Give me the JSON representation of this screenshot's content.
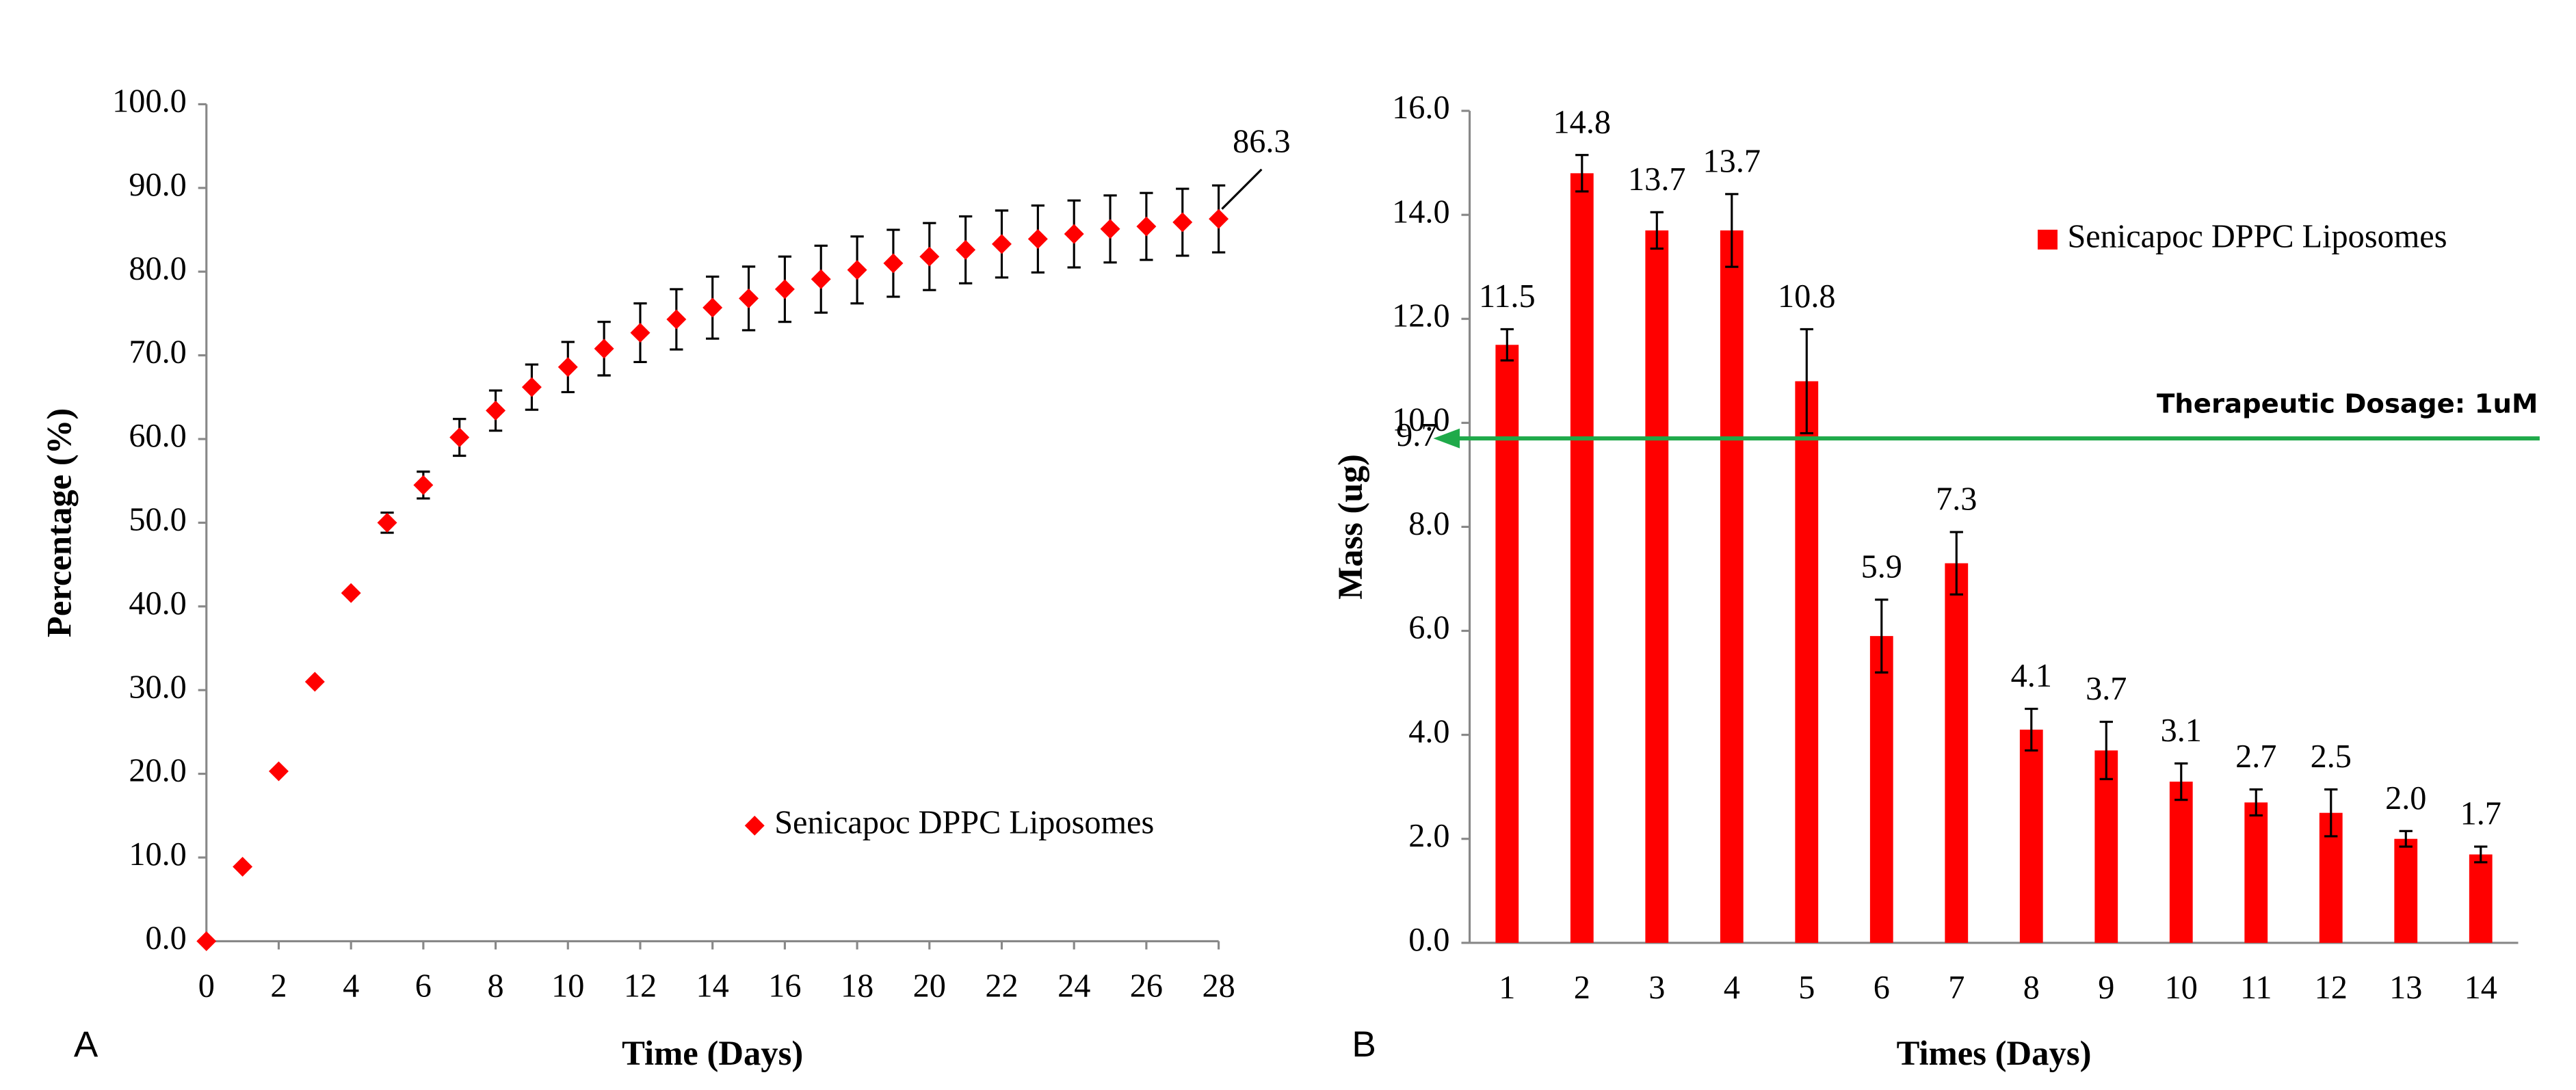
{
  "chart_data": [
    {
      "type": "scatter",
      "panel": "A",
      "x_label": "Time (Days)",
      "y_label": "Percentage (%)",
      "x": [
        0,
        1,
        2,
        3,
        4,
        5,
        6,
        7,
        8,
        9,
        10,
        11,
        12,
        13,
        14,
        15,
        16,
        17,
        18,
        19,
        20,
        21,
        22,
        23,
        24,
        25,
        26,
        27,
        28
      ],
      "series": [
        {
          "name": "Senicapoc DPPC Liposomes",
          "color": "#ff0000",
          "values": [
            0,
            8.9,
            20.3,
            31.0,
            41.6,
            50.0,
            54.5,
            60.2,
            63.4,
            66.2,
            68.6,
            70.8,
            72.7,
            74.3,
            75.7,
            76.8,
            77.9,
            79.1,
            80.2,
            81.0,
            81.8,
            82.6,
            83.3,
            83.9,
            84.5,
            85.1,
            85.4,
            85.9,
            86.3
          ],
          "errors": [
            0,
            0,
            0,
            0,
            0,
            1.2,
            1.6,
            2.2,
            2.4,
            2.7,
            3.0,
            3.2,
            3.5,
            3.6,
            3.7,
            3.8,
            3.9,
            4.0,
            4.0,
            4.0,
            4.0,
            4.0,
            4.0,
            4.0,
            4.0,
            4.0,
            4.0,
            4.0,
            4.0
          ],
          "value_labels": [
            null,
            null,
            null,
            null,
            null,
            null,
            null,
            null,
            null,
            null,
            null,
            null,
            null,
            null,
            null,
            null,
            null,
            null,
            null,
            null,
            null,
            null,
            null,
            null,
            null,
            null,
            null,
            null,
            "86.3"
          ]
        }
      ],
      "xlim": [
        0,
        28
      ],
      "xticks": [
        0,
        2,
        4,
        6,
        8,
        10,
        12,
        14,
        16,
        18,
        20,
        22,
        24,
        26,
        28
      ],
      "ylim": [
        0,
        100
      ],
      "yticks": [
        {
          "value": 0,
          "label": "0.0"
        },
        {
          "value": 10,
          "label": "10.0"
        },
        {
          "value": 20,
          "label": "20.0"
        },
        {
          "value": 30,
          "label": "30.0"
        },
        {
          "value": 40,
          "label": "40.0"
        },
        {
          "value": 50,
          "label": "50.0"
        },
        {
          "value": 60,
          "label": "60.0"
        },
        {
          "value": 70,
          "label": "70.0"
        },
        {
          "value": 80,
          "label": "80.0"
        },
        {
          "value": 90,
          "label": "90.0"
        },
        {
          "value": 100,
          "label": "100.0"
        }
      ],
      "legend": "lower right"
    },
    {
      "type": "bar",
      "panel": "B",
      "x_label": "Times (Days)",
      "y_label": "Mass (ug)",
      "categories": [
        "1",
        "2",
        "3",
        "4",
        "5",
        "6",
        "7",
        "8",
        "9",
        "10",
        "11",
        "12",
        "13",
        "14"
      ],
      "series": [
        {
          "name": "Senicapoc DPPC Liposomes",
          "color": "#ff0000",
          "values": [
            11.5,
            14.8,
            13.7,
            13.7,
            10.8,
            5.9,
            7.3,
            4.1,
            3.7,
            3.1,
            2.7,
            2.5,
            2.0,
            1.7
          ],
          "errors": [
            0.3,
            0.35,
            0.35,
            0.7,
            1.0,
            0.7,
            0.6,
            0.4,
            0.55,
            0.35,
            0.25,
            0.45,
            0.15,
            0.15
          ],
          "value_labels": [
            "11.5",
            "14.8",
            "13.7",
            "13.7",
            "10.8",
            "5.9",
            "7.3",
            "4.1",
            "3.7",
            "3.1",
            "2.7",
            "2.5",
            "2.0",
            "1.7"
          ]
        }
      ],
      "ylim": [
        0,
        16
      ],
      "yticks": [
        {
          "value": 0,
          "label": "0.0"
        },
        {
          "value": 2,
          "label": "2.0"
        },
        {
          "value": 4,
          "label": "4.0"
        },
        {
          "value": 6,
          "label": "6.0"
        },
        {
          "value": 8,
          "label": "8.0"
        },
        {
          "value": 10,
          "label": "10.0"
        },
        {
          "value": 12,
          "label": "12.0"
        },
        {
          "value": 14,
          "label": "14.0"
        },
        {
          "value": 16,
          "label": "16.0"
        }
      ],
      "annotation": {
        "text": "Therapeutic Dosage: 1uM",
        "value": 9.7,
        "label": "9.7",
        "color": "#1faa4a"
      },
      "legend": "upper right"
    }
  ]
}
